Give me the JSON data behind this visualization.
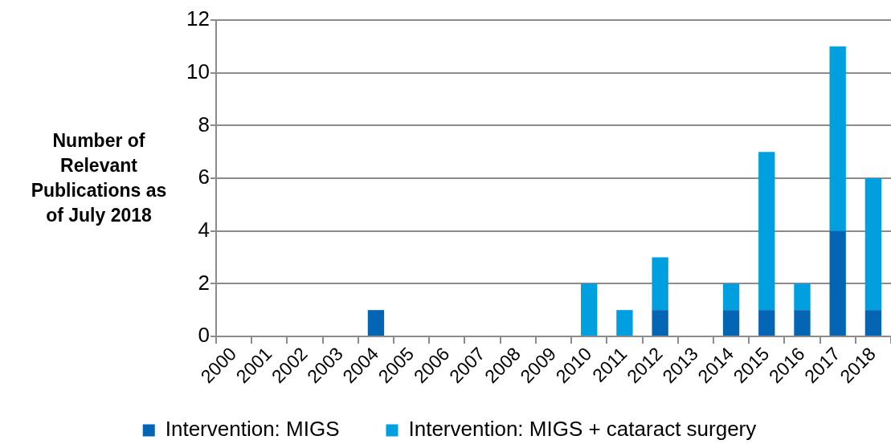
{
  "chart_data": {
    "type": "bar",
    "ylabel": "Number of Relevant Publications as of July 2018",
    "categories": [
      "2000",
      "2001",
      "2002",
      "2003",
      "2004",
      "2005",
      "2006",
      "2007",
      "2008",
      "2009",
      "2010",
      "2011",
      "2012",
      "2013",
      "2014",
      "2015",
      "2016",
      "2017",
      "2018"
    ],
    "series": [
      {
        "name": "Intervention: MIGS",
        "color": "#0565b5",
        "values": [
          0,
          0,
          0,
          0,
          1,
          0,
          0,
          0,
          0,
          0,
          0,
          0,
          1,
          0,
          1,
          1,
          1,
          4,
          1
        ]
      },
      {
        "name": "Intervention: MIGS + cataract surgery",
        "color": "#009fdf",
        "values": [
          0,
          0,
          0,
          0,
          0,
          0,
          0,
          0,
          0,
          0,
          2,
          1,
          2,
          0,
          1,
          6,
          1,
          7,
          5
        ]
      }
    ],
    "stacked": true,
    "ylim": [
      0,
      12
    ],
    "yticks": [
      0,
      2,
      4,
      6,
      8,
      10,
      12
    ],
    "grid": "y",
    "legend": "bottom"
  }
}
